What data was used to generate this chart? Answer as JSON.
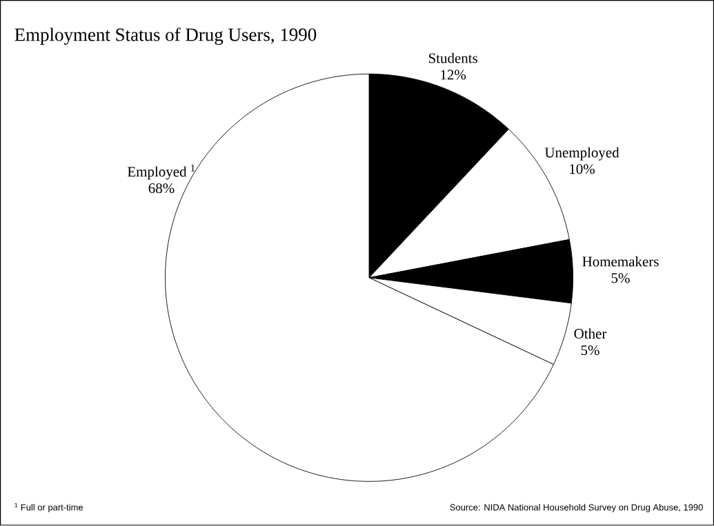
{
  "chart_data": {
    "type": "pie",
    "title": "Employment Status of Drug Users, 1990",
    "categories": [
      "Students",
      "Unemployed",
      "Homemakers",
      "Other",
      "Employed $^{1}$"
    ],
    "values": [
      12,
      10,
      5,
      5,
      68
    ],
    "value_labels": [
      "12%",
      "10%",
      "5%",
      "5%",
      "68%"
    ],
    "colors": [
      "#000000",
      "#ffffff",
      "#000000",
      "#ffffff",
      "#ffffff"
    ],
    "annotations": [
      "$^{1}$ Full or part-time",
      "Source: NIDA National Household Survey on Drug Abuse, 1990"
    ]
  }
}
